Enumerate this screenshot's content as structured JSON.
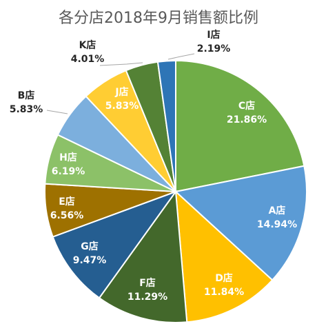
{
  "chart_data": {
    "type": "pie",
    "title": "各分店2018年9月销售额比例",
    "slices": [
      {
        "name": "C店",
        "label": "C店",
        "pct": "21.86%",
        "value": 21.86,
        "color": "#70ad47",
        "label_color": "#ffffff"
      },
      {
        "name": "A店",
        "label": "A店",
        "pct": "14.94%",
        "value": 14.94,
        "color": "#5b9bd5",
        "label_color": "#ffffff"
      },
      {
        "name": "D店",
        "label": "D店",
        "pct": "11.84%",
        "value": 11.84,
        "color": "#ffc000",
        "label_color": "#ffffff"
      },
      {
        "name": "F店",
        "label": "F店",
        "pct": "11.29%",
        "value": 11.29,
        "color": "#43682b",
        "label_color": "#ffffff"
      },
      {
        "name": "G店",
        "label": "G店",
        "pct": "9.47%",
        "value": 9.47,
        "color": "#255e91",
        "label_color": "#ffffff"
      },
      {
        "name": "E店",
        "label": "E店",
        "pct": "6.56%",
        "value": 6.56,
        "color": "#9e7100",
        "label_color": "#ffffff"
      },
      {
        "name": "H店",
        "label": "H店",
        "pct": "6.19%",
        "value": 6.19,
        "color": "#8cc168",
        "label_color": "#ffffff"
      },
      {
        "name": "B店",
        "label": "B店",
        "pct": "5.83%",
        "value": 5.83,
        "color": "#7cafdd",
        "label_color": "#262626",
        "outside": true
      },
      {
        "name": "J店",
        "label": "J店",
        "pct": "5.83%",
        "value": 5.83,
        "color": "#ffcd33",
        "label_color": "#ffffff"
      },
      {
        "name": "K店",
        "label": "K店",
        "pct": "4.01%",
        "value": 4.01,
        "color": "#548235",
        "label_color": "#262626",
        "outside": true
      },
      {
        "name": "I店",
        "label": "I店",
        "pct": "2.19%",
        "value": 2.19,
        "color": "#2e75b6",
        "label_color": "#262626",
        "outside": true
      }
    ],
    "legend": "none"
  }
}
